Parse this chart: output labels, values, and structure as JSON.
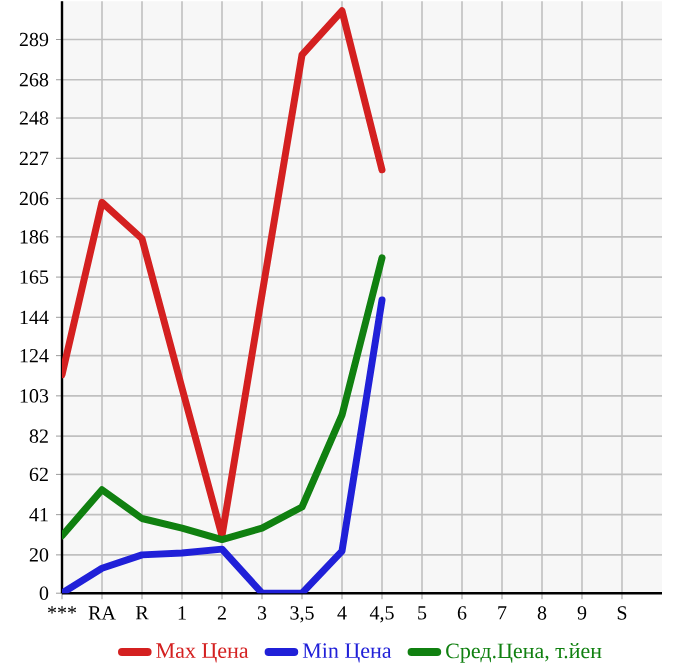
{
  "chart_data": {
    "type": "line",
    "categories": [
      "***",
      "RA",
      "R",
      "1",
      "2",
      "3",
      "3,5",
      "4",
      "4,5",
      "5",
      "6",
      "7",
      "8",
      "9",
      "S"
    ],
    "series": [
      {
        "name": "Max Цена",
        "color": "#d42020",
        "values": [
          114,
          204,
          185,
          107,
          30,
          156,
          281,
          304,
          221,
          null,
          null,
          null,
          null,
          null,
          null
        ]
      },
      {
        "name": "Min Цена",
        "color": "#2020d8",
        "values": [
          0,
          13,
          20,
          21,
          23,
          0,
          0,
          22,
          153,
          null,
          null,
          null,
          null,
          null,
          null
        ]
      },
      {
        "name": "Сред.Цена, т.йен",
        "color": "#108010",
        "values": [
          30,
          54,
          39,
          34,
          28,
          34,
          45,
          93,
          175,
          null,
          null,
          null,
          null,
          null,
          null
        ]
      }
    ],
    "ylim": [
      0,
      309
    ],
    "yticks": [
      0,
      20,
      41,
      62,
      82,
      103,
      124,
      144,
      165,
      186,
      206,
      227,
      248,
      268,
      289
    ],
    "grid": true,
    "legend": "bottom",
    "marker": "none",
    "line_style": "solid"
  }
}
